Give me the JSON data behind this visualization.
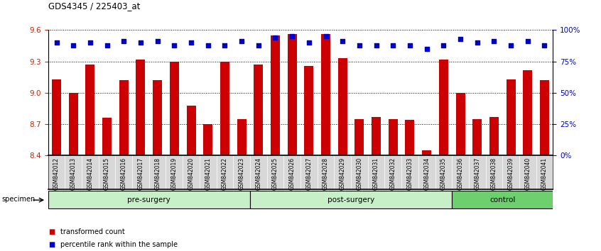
{
  "title": "GDS4345 / 225403_at",
  "samples": [
    "GSM842012",
    "GSM842013",
    "GSM842014",
    "GSM842015",
    "GSM842016",
    "GSM842017",
    "GSM842018",
    "GSM842019",
    "GSM842020",
    "GSM842021",
    "GSM842022",
    "GSM842023",
    "GSM842024",
    "GSM842025",
    "GSM842026",
    "GSM842027",
    "GSM842028",
    "GSM842029",
    "GSM842030",
    "GSM842031",
    "GSM842032",
    "GSM842033",
    "GSM842034",
    "GSM842035",
    "GSM842036",
    "GSM842037",
    "GSM842038",
    "GSM842039",
    "GSM842040",
    "GSM842041"
  ],
  "bar_values": [
    9.13,
    9.0,
    9.27,
    8.76,
    9.12,
    9.32,
    9.12,
    9.3,
    8.88,
    8.7,
    9.3,
    8.75,
    9.27,
    9.55,
    9.56,
    9.26,
    9.56,
    9.33,
    8.75,
    8.77,
    8.75,
    8.74,
    8.45,
    9.32,
    9.0,
    8.75,
    8.77,
    9.13,
    9.22,
    9.12
  ],
  "percentile_values": [
    90,
    88,
    90,
    88,
    91,
    90,
    91,
    88,
    90,
    88,
    88,
    91,
    88,
    94,
    95,
    90,
    95,
    91,
    88,
    88,
    88,
    88,
    85,
    88,
    93,
    90,
    91,
    88,
    91,
    88
  ],
  "groups": [
    {
      "label": "pre-surgery",
      "start": 0,
      "end": 12,
      "color": "#c8f0c8"
    },
    {
      "label": "post-surgery",
      "start": 12,
      "end": 24,
      "color": "#c8f0c8"
    },
    {
      "label": "control",
      "start": 24,
      "end": 30,
      "color": "#6ecf6e"
    }
  ],
  "ylim": [
    8.4,
    9.6
  ],
  "yticks": [
    8.4,
    8.7,
    9.0,
    9.3,
    9.6
  ],
  "right_yticks": [
    0,
    25,
    50,
    75,
    100
  ],
  "bar_color": "#cc0000",
  "dot_color": "#0000cc",
  "bar_bottom": 8.4,
  "background_color": "#ffffff",
  "plot_bg_color": "#ffffff",
  "tick_label_color": "#cc2200",
  "right_tick_color": "#0000cc",
  "specimen_label": "specimen",
  "legend_items": [
    "transformed count",
    "percentile rank within the sample"
  ]
}
